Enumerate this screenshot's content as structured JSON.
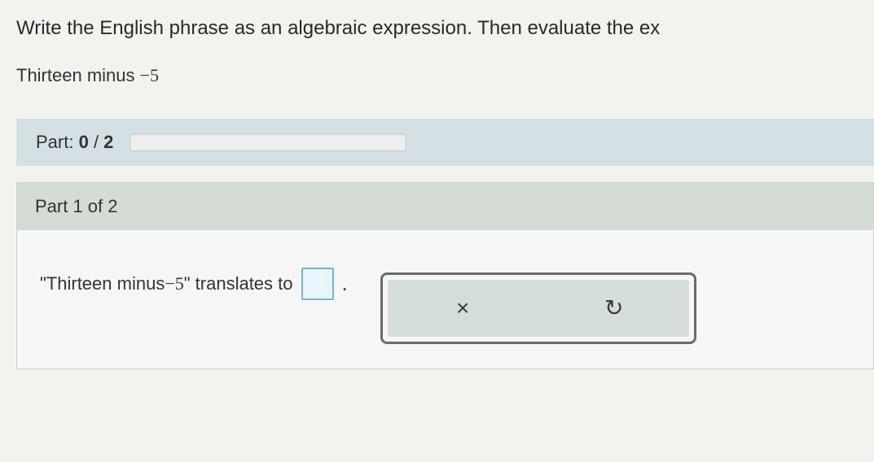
{
  "question": {
    "prompt": "Write the English phrase as an algebraic expression. Then evaluate the ex",
    "phrase_prefix": "Thirteen minus ",
    "phrase_value": "−5"
  },
  "progress": {
    "label_prefix": "Part: ",
    "current": "0",
    "sep": " / ",
    "total": "2",
    "percent": 0
  },
  "part": {
    "header": "Part 1 of 2",
    "line_prefix": "\"Thirteen minus ",
    "line_value": "−5",
    "line_suffix": "\" translates to",
    "period": "."
  },
  "actions": {
    "clear_icon": "×",
    "undo_icon": "↺"
  },
  "colors": {
    "page_bg": "#f2f2ef",
    "progress_bg": "#d4e0e4",
    "panel_header_bg": "#d5dbd5",
    "answer_box_border": "#6fb7d6",
    "answer_box_bg": "#eaf5fa",
    "action_border": "#6b6b6b",
    "action_inner_bg": "#d6deda"
  }
}
